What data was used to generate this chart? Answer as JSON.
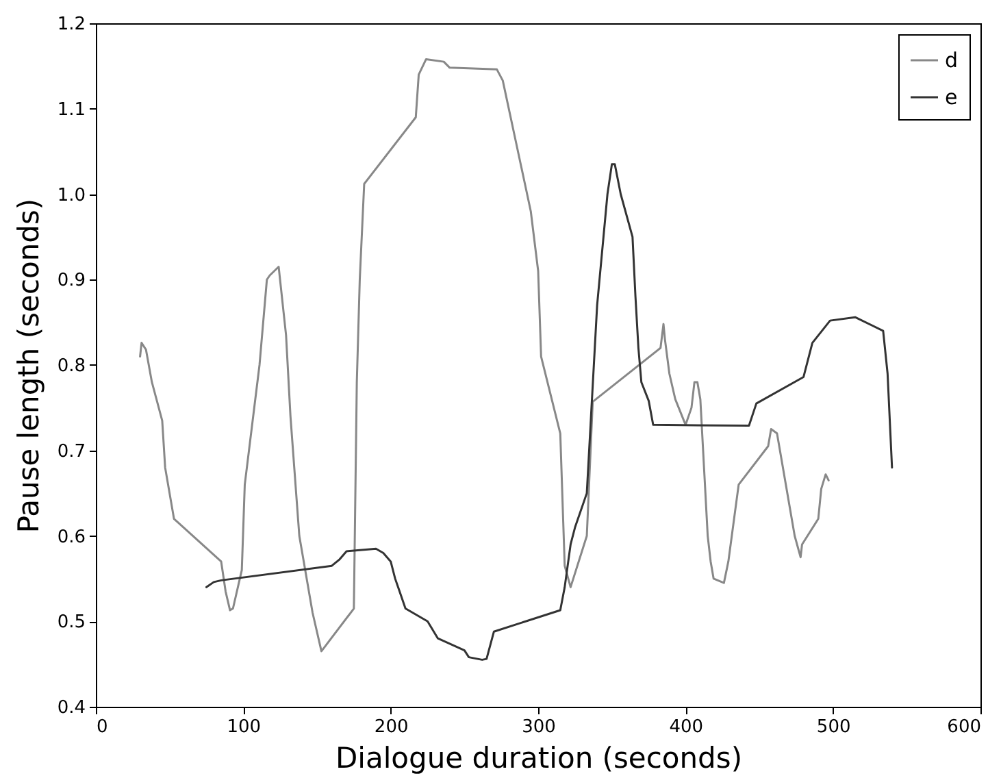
{
  "chart_data": {
    "type": "line",
    "xlabel": "Dialogue duration (seconds)",
    "ylabel": "Pause length (seconds)",
    "xlim": [
      0,
      600
    ],
    "xticks": [
      0,
      100,
      200,
      300,
      400,
      500,
      600
    ],
    "ylim": [
      0.4,
      1.2
    ],
    "yticks": [
      0.4,
      0.5,
      0.6,
      0.7,
      0.8,
      0.9,
      {
        "value": 1,
        "label": "1.0"
      },
      1.1,
      1.2
    ],
    "grid": false,
    "legend": "top right",
    "line_style": "solid",
    "series": [
      {
        "name": "d",
        "color": "#888888",
        "x": [
          30,
          31,
          34,
          38,
          45,
          47,
          53,
          85,
          88,
          91,
          93,
          99,
          101,
          111,
          116,
          118,
          124,
          129,
          132,
          138,
          147,
          153,
          175,
          177,
          179,
          182,
          217,
          219,
          224,
          236,
          240,
          272,
          276,
          295,
          300,
          302,
          315,
          318,
          322,
          333,
          337,
          383,
          385,
          386,
          389,
          393,
          400,
          404,
          406,
          408,
          410,
          415,
          417,
          419,
          426,
          429,
          436,
          456,
          458,
          462,
          474,
          478,
          479,
          490,
          492,
          495,
          497
        ],
        "values": [
          0.81,
          0.826,
          0.818,
          0.78,
          0.735,
          0.68,
          0.62,
          0.57,
          0.535,
          0.513,
          0.515,
          0.56,
          0.66,
          0.8,
          0.9,
          0.905,
          0.915,
          0.835,
          0.74,
          0.6,
          0.51,
          0.465,
          0.515,
          0.78,
          0.9,
          1.012,
          1.09,
          1.14,
          1.158,
          1.155,
          1.148,
          1.146,
          1.133,
          0.98,
          0.91,
          0.81,
          0.72,
          0.565,
          0.54,
          0.6,
          0.757,
          0.82,
          0.848,
          0.83,
          0.79,
          0.76,
          0.73,
          0.75,
          0.78,
          0.78,
          0.76,
          0.6,
          0.57,
          0.55,
          0.545,
          0.57,
          0.66,
          0.705,
          0.725,
          0.72,
          0.6,
          0.575,
          0.59,
          0.62,
          0.655,
          0.672,
          0.665
        ]
      },
      {
        "name": "e",
        "color": "#333333",
        "x": [
          75,
          80,
          85,
          160,
          165,
          170,
          190,
          195,
          200,
          203,
          205,
          210,
          225,
          232,
          250,
          253,
          262,
          265,
          270,
          315,
          318,
          322,
          325,
          333,
          340,
          347,
          350,
          352,
          356,
          364,
          366,
          368,
          370,
          375,
          378,
          443,
          448,
          480,
          486,
          498,
          515,
          534,
          537,
          540
        ],
        "values": [
          0.54,
          0.546,
          0.548,
          0.565,
          0.572,
          0.582,
          0.585,
          0.58,
          0.57,
          0.55,
          0.54,
          0.515,
          0.5,
          0.48,
          0.466,
          0.458,
          0.455,
          0.456,
          0.488,
          0.513,
          0.54,
          0.59,
          0.61,
          0.65,
          0.87,
          1.0,
          1.035,
          1.035,
          1.0,
          0.95,
          0.88,
          0.82,
          0.78,
          0.758,
          0.73,
          0.729,
          0.755,
          0.786,
          0.826,
          0.852,
          0.856,
          0.84,
          0.79,
          0.68
        ]
      }
    ]
  }
}
